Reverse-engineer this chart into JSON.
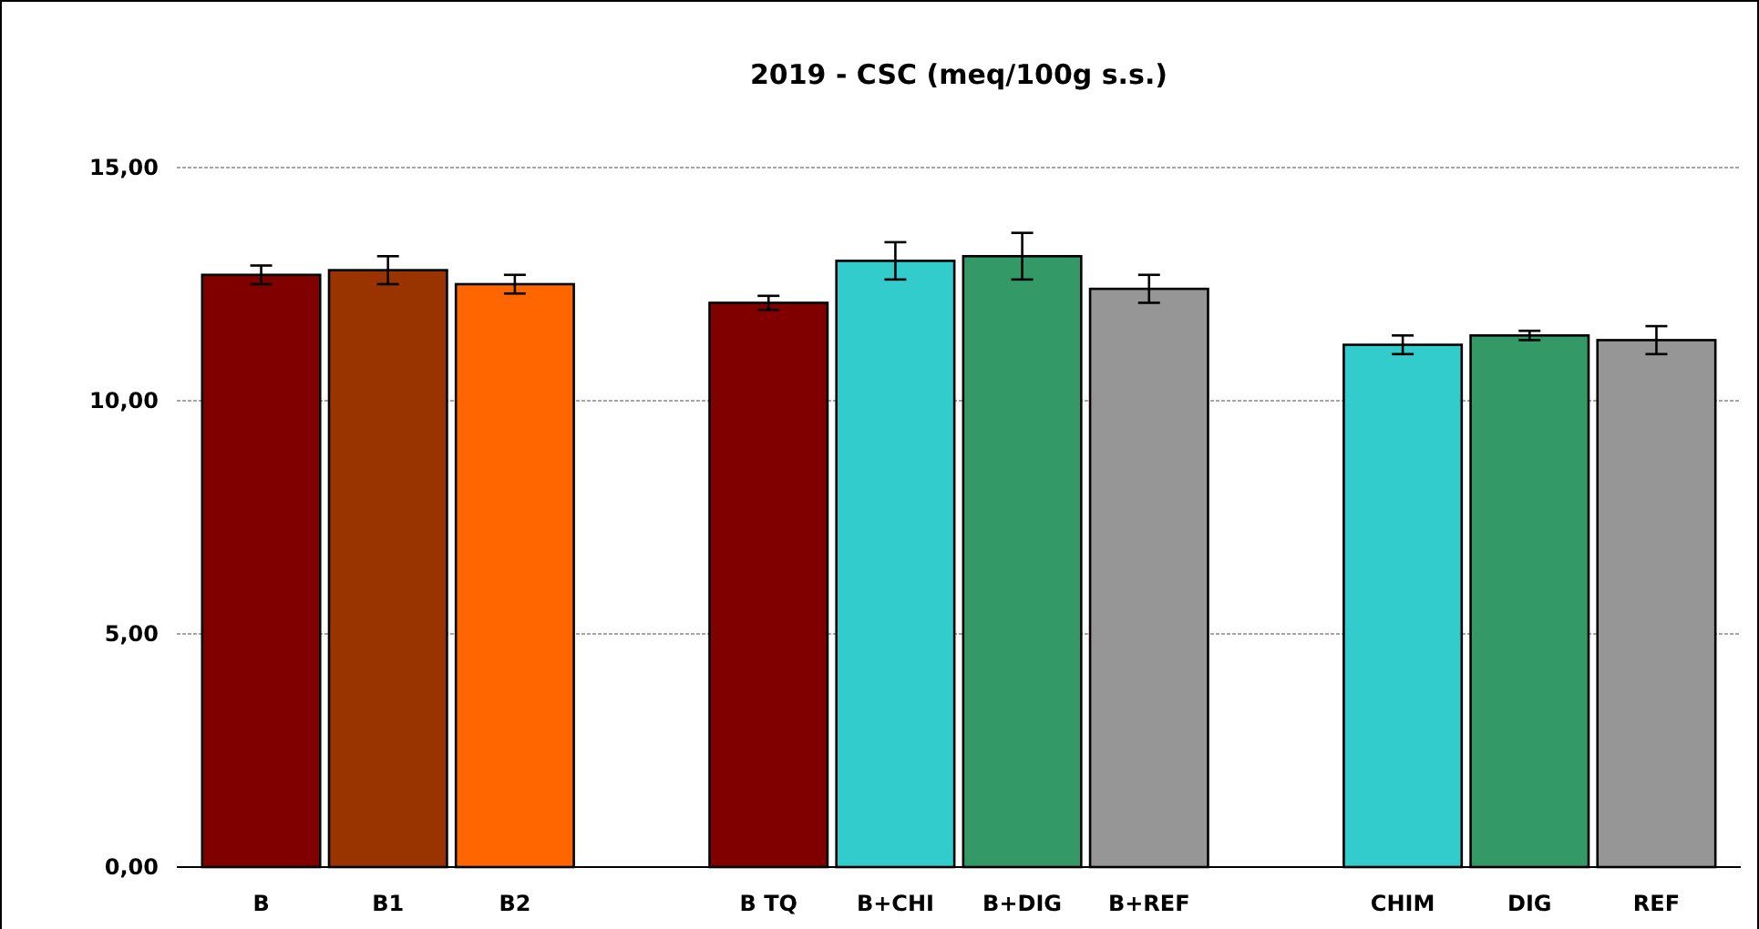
{
  "chart_data": {
    "type": "bar",
    "title": "2019 - CSC (meq/100g s.s.)",
    "categories": [
      "B",
      "B1",
      "B2",
      null,
      "B TQ",
      "B+CHI",
      "B+DIG",
      "B+REF",
      null,
      "CHIM",
      "DIG",
      "REF"
    ],
    "values": [
      12.7,
      12.8,
      12.5,
      null,
      12.1,
      13.0,
      13.1,
      12.4,
      null,
      11.2,
      11.4,
      11.3
    ],
    "errors": [
      0.2,
      0.3,
      0.2,
      null,
      0.15,
      0.4,
      0.5,
      0.3,
      null,
      0.2,
      0.1,
      0.3
    ],
    "colors": [
      "#800000",
      "#993300",
      "#ff6600",
      null,
      "#800000",
      "#33cccc",
      "#339966",
      "#969696",
      null,
      "#33cccc",
      "#339966",
      "#969696"
    ],
    "ylim": [
      0,
      15
    ],
    "yticks": [
      {
        "value": 0,
        "label": "0,00"
      },
      {
        "value": 5,
        "label": "5,00"
      },
      {
        "value": 10,
        "label": "10,00"
      },
      {
        "value": 15,
        "label": "15,00"
      }
    ],
    "grid": "y"
  }
}
